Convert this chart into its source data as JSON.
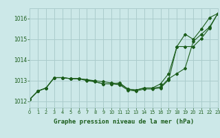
{
  "background_color": "#cce8e8",
  "grid_color": "#aacccc",
  "line_color": "#1a5c1a",
  "marker_color": "#1a5c1a",
  "title": "Graphe pression niveau de la mer (hPa)",
  "xlim": [
    0,
    23
  ],
  "ylim": [
    1011.7,
    1016.5
  ],
  "yticks": [
    1012,
    1013,
    1014,
    1015,
    1016
  ],
  "xticks": [
    0,
    1,
    2,
    3,
    4,
    5,
    6,
    7,
    8,
    9,
    10,
    11,
    12,
    13,
    14,
    15,
    16,
    17,
    18,
    19,
    20,
    21,
    22,
    23
  ],
  "series1_x": [
    0,
    1,
    2,
    3,
    4,
    5,
    6,
    7,
    8,
    9,
    10,
    11,
    12,
    13,
    14,
    15,
    16,
    17,
    18,
    19,
    20,
    21,
    22,
    23
  ],
  "series1_y": [
    1012.1,
    1012.5,
    1012.65,
    1013.15,
    1013.15,
    1013.1,
    1013.1,
    1013.05,
    1013.0,
    1012.95,
    1012.9,
    1012.85,
    1012.6,
    1012.55,
    1012.65,
    1012.65,
    1012.7,
    1013.1,
    1013.35,
    1013.6,
    1014.9,
    1015.25,
    1015.6,
    1016.25
  ],
  "series2_x": [
    0,
    1,
    2,
    3,
    4,
    5,
    6,
    7,
    8,
    9,
    10,
    11,
    12,
    13,
    14,
    15,
    16,
    17,
    18,
    19,
    20,
    21,
    22,
    23
  ],
  "series2_y": [
    1012.1,
    1012.5,
    1012.65,
    1013.15,
    1013.15,
    1013.1,
    1013.1,
    1013.05,
    1012.95,
    1012.85,
    1012.85,
    1012.9,
    1012.6,
    1012.55,
    1012.65,
    1012.65,
    1012.85,
    1013.35,
    1014.65,
    1014.65,
    1014.65,
    1015.05,
    1015.55,
    1016.25
  ],
  "series3_x": [
    0,
    1,
    2,
    3,
    4,
    5,
    6,
    7,
    8,
    9,
    10,
    11,
    12,
    13,
    14,
    15,
    16,
    17,
    18,
    19,
    20,
    21,
    22,
    23
  ],
  "series3_y": [
    1012.1,
    1012.5,
    1012.65,
    1013.15,
    1013.15,
    1013.1,
    1013.1,
    1013.0,
    1012.95,
    1012.85,
    1012.85,
    1012.8,
    1012.55,
    1012.5,
    1012.6,
    1012.6,
    1012.65,
    1013.05,
    1014.65,
    1015.25,
    1015.0,
    1015.5,
    1016.05,
    1016.25
  ]
}
